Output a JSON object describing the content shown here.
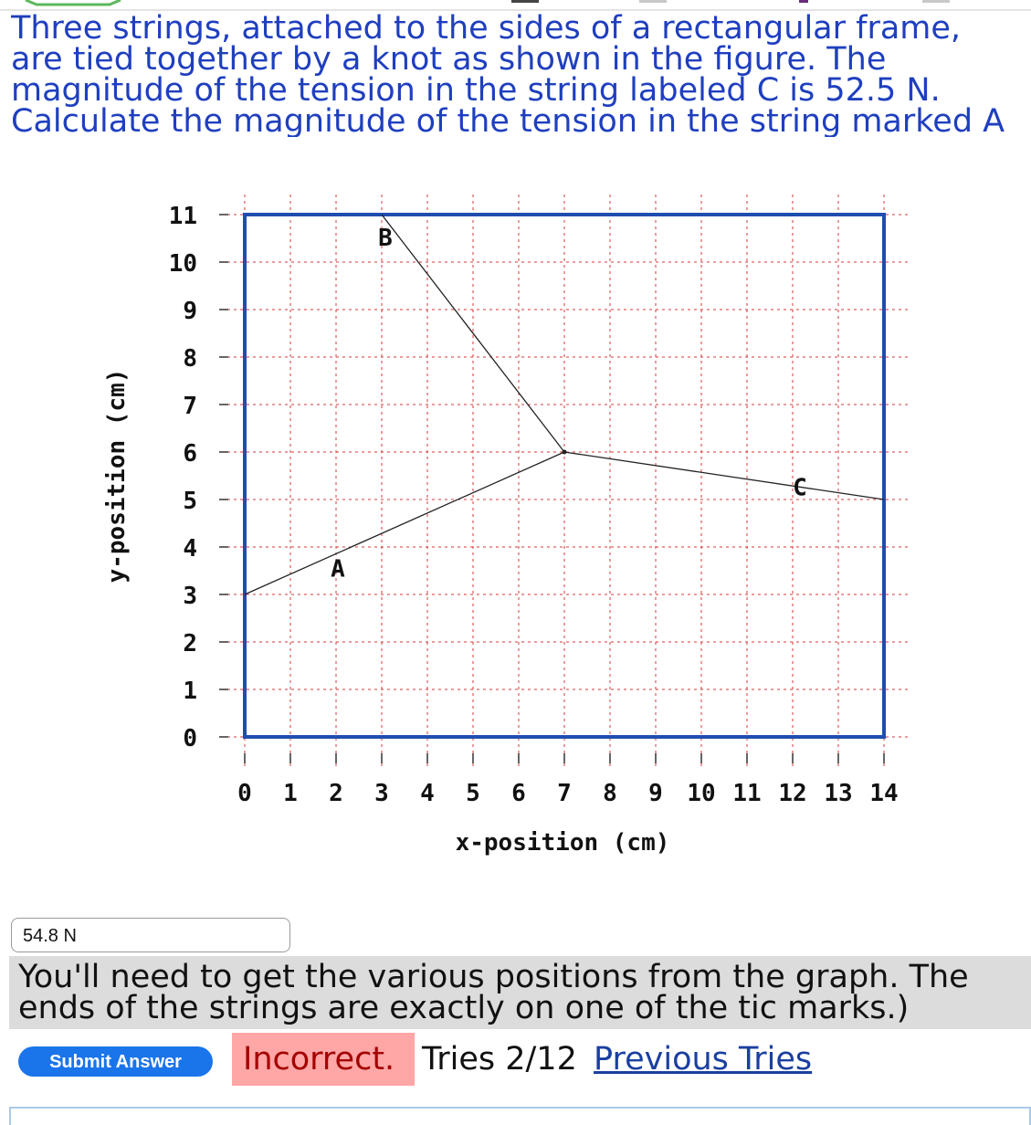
{
  "problem": {
    "lines": [
      "Three strings, attached to the sides of a rectangular frame,",
      "are tied together by a knot as shown in the figure. The",
      "magnitude of the tension in the string labeled C is 52.5 N.",
      "Calculate the magnitude of the tension in the string marked A"
    ]
  },
  "figure": {
    "xlabel": "x-position (cm)",
    "ylabel": "y-position (cm)",
    "x_ticks": [
      "0",
      "1",
      "2",
      "3",
      "4",
      "5",
      "6",
      "7",
      "8",
      "9",
      "10",
      "11",
      "12",
      "13",
      "14"
    ],
    "y_ticks": [
      "0",
      "1",
      "2",
      "3",
      "4",
      "5",
      "6",
      "7",
      "8",
      "9",
      "10",
      "11"
    ],
    "xlim": [
      0,
      14
    ],
    "ylim": [
      0,
      11
    ],
    "frame_color": "#1f4db0",
    "knot": [
      7,
      6
    ],
    "strings": [
      {
        "label": "A",
        "end": [
          0,
          3
        ]
      },
      {
        "label": "B",
        "end": [
          3,
          11
        ]
      },
      {
        "label": "C",
        "end": [
          14,
          5
        ]
      }
    ]
  },
  "answer": {
    "value": "54.8 N"
  },
  "hint": {
    "lines": [
      "You'll need to get the various positions from the graph. The",
      "ends of the strings are exactly on one of the tic marks.)"
    ]
  },
  "submit": {
    "label": "Submit Answer"
  },
  "status": {
    "result": "Incorrect.",
    "tries": "Tries 2/12",
    "previous_link": "Previous Tries"
  },
  "colors": {
    "link": "#1a3fa0",
    "submit": "#1a74ea",
    "incorrect_bg": "#ffa6a6",
    "problem_text": "#1f3fbf"
  }
}
